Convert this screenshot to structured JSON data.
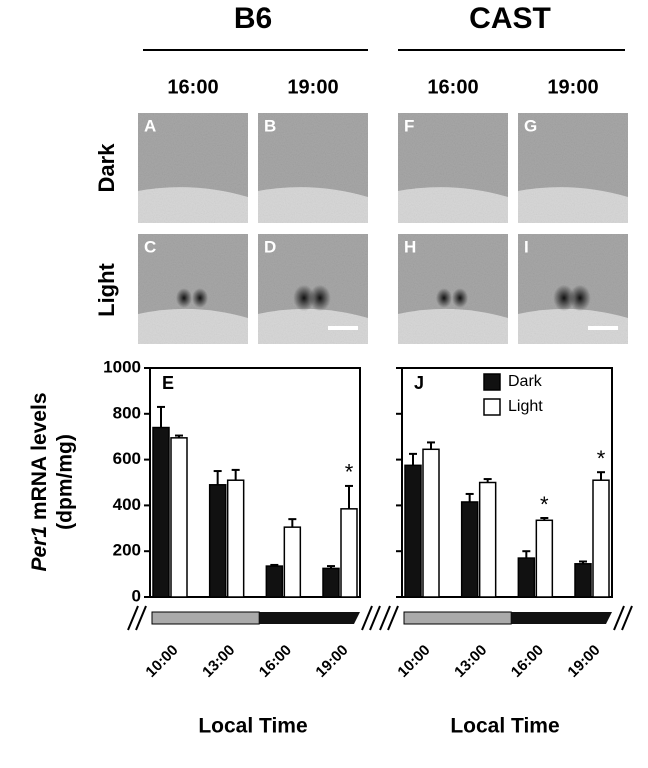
{
  "figure": {
    "groups": [
      "B6",
      "CAST"
    ],
    "times": [
      "16:00",
      "19:00",
      "16:00",
      "19:00"
    ],
    "rows": [
      "Dark",
      "Light"
    ],
    "panels": [
      [
        "A",
        "B",
        "F",
        "G"
      ],
      [
        "C",
        "D",
        "H",
        "I"
      ]
    ]
  },
  "chart_data": [
    {
      "type": "bar",
      "panel": "E",
      "ylabel": {
        "gene": "Per1",
        "text": "mRNA levels",
        "unit": "(dpm/mg)"
      },
      "xlabel": "Local Time",
      "categories": [
        "10:00",
        "13:00",
        "16:00",
        "19:00"
      ],
      "series": [
        {
          "name": "Dark",
          "color": "#111111",
          "values": [
            740,
            490,
            135,
            125
          ],
          "errors": [
            90,
            60,
            5,
            10
          ],
          "marks": [
            null,
            null,
            null,
            null
          ]
        },
        {
          "name": "Light",
          "color": "#ffffff",
          "values": [
            695,
            510,
            305,
            385
          ],
          "errors": [
            10,
            45,
            35,
            100
          ],
          "marks": [
            null,
            null,
            null,
            "*"
          ]
        }
      ],
      "ylim": [
        0,
        1000
      ],
      "yticks": [
        0,
        200,
        400,
        600,
        800,
        1000
      ],
      "tick_labels": true,
      "legend": false
    },
    {
      "type": "bar",
      "panel": "J",
      "xlabel": "Local Time",
      "categories": [
        "10:00",
        "13:00",
        "16:00",
        "19:00"
      ],
      "series": [
        {
          "name": "Dark",
          "color": "#111111",
          "values": [
            575,
            415,
            170,
            145
          ],
          "errors": [
            50,
            35,
            30,
            10
          ],
          "marks": [
            null,
            null,
            null,
            null
          ]
        },
        {
          "name": "Light",
          "color": "#ffffff",
          "values": [
            645,
            500,
            335,
            510
          ],
          "errors": [
            30,
            15,
            10,
            35
          ],
          "marks": [
            null,
            null,
            "*",
            "*"
          ]
        }
      ],
      "ylim": [
        0,
        1000
      ],
      "yticks": [
        0,
        200,
        400,
        600,
        800,
        1000
      ],
      "tick_labels": false,
      "legend": "upper right"
    }
  ]
}
